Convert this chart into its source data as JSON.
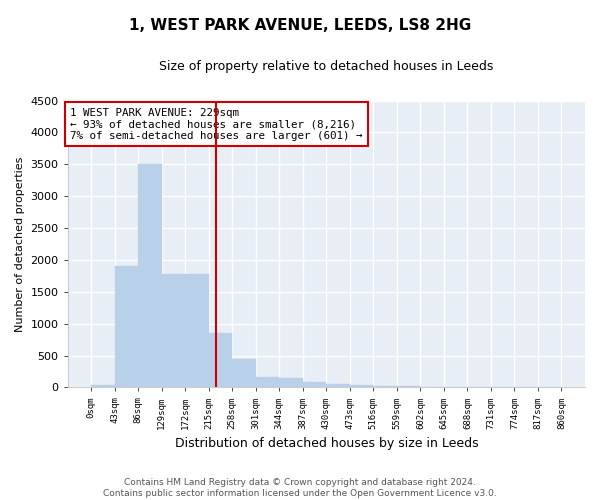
{
  "title1": "1, WEST PARK AVENUE, LEEDS, LS8 2HG",
  "title2": "Size of property relative to detached houses in Leeds",
  "xlabel": "Distribution of detached houses by size in Leeds",
  "ylabel": "Number of detached properties",
  "annotation_line1": "1 WEST PARK AVENUE: 229sqm",
  "annotation_line2": "← 93% of detached houses are smaller (8,216)",
  "annotation_line3": "7% of semi-detached houses are larger (601) →",
  "property_size_sqm": 229,
  "bin_edges": [
    0,
    43,
    86,
    129,
    172,
    215,
    258,
    301,
    344,
    387,
    430,
    473,
    516,
    559,
    602,
    645,
    688,
    731,
    774,
    817,
    860
  ],
  "bar_heights": [
    30,
    1900,
    3500,
    1780,
    1780,
    850,
    450,
    160,
    155,
    90,
    60,
    40,
    25,
    15,
    8,
    5,
    3,
    2,
    1,
    1
  ],
  "bar_color": "#b8d0e8",
  "bar_edgecolor": "#b8d0e8",
  "vline_color": "#cc0000",
  "vline_x": 229,
  "annotation_box_color": "#cc0000",
  "background_color": "#ffffff",
  "axes_facecolor": "#e8eef5",
  "grid_color": "#ffffff",
  "ylim": [
    0,
    4500
  ],
  "yticks": [
    0,
    500,
    1000,
    1500,
    2000,
    2500,
    3000,
    3500,
    4000,
    4500
  ],
  "footer_line1": "Contains HM Land Registry data © Crown copyright and database right 2024.",
  "footer_line2": "Contains public sector information licensed under the Open Government Licence v3.0."
}
